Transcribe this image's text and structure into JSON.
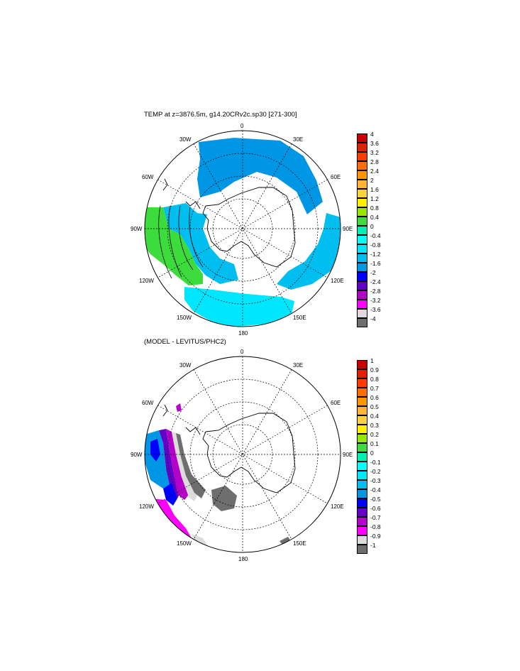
{
  "panels": [
    {
      "title": "TEMP at z=3876.5m, g14.20CRv2c.sp30 [271-300]",
      "colorbar": {
        "labels": [
          "4",
          "3.6",
          "3.2",
          "2.8",
          "2.4",
          "2",
          "1.6",
          "1.2",
          "0.8",
          "0.4",
          "0",
          "-0.4",
          "-0.8",
          "-1.2",
          "-1.6",
          "-2",
          "-2.4",
          "-2.8",
          "-3.2",
          "-3.6",
          "-4"
        ],
        "colors": [
          "#c80000",
          "#e61e00",
          "#ff3c00",
          "#ff6e00",
          "#ff9600",
          "#ffb432",
          "#ffd23c",
          "#fff000",
          "#96e600",
          "#3cdc3c",
          "#00f0b4",
          "#00ffff",
          "#00e6ff",
          "#00bef0",
          "#0096e6",
          "#0000ff",
          "#6400c8",
          "#b400c8",
          "#ff00ff",
          "#dcdcdc",
          "#6e6e6e"
        ]
      },
      "map_labels": {
        "top": "0",
        "bottom": "180",
        "left": "90W",
        "right": "90E",
        "w30": "30W",
        "w60": "60W",
        "w120": "120W",
        "w150": "150W",
        "e30": "30E",
        "e60": "60E",
        "e120": "120E",
        "e150": "150E"
      }
    },
    {
      "title": "(MODEL - LEVITUS/PHC2)",
      "colorbar": {
        "labels": [
          "1",
          "0.9",
          "0.8",
          "0.7",
          "0.6",
          "0.5",
          "0.4",
          "0.3",
          "0.2",
          "0.1",
          "0",
          "-0.1",
          "-0.2",
          "-0.3",
          "-0.4",
          "-0.5",
          "-0.6",
          "-0.7",
          "-0.8",
          "-0.9",
          "-1"
        ],
        "colors": [
          "#c80000",
          "#e61e00",
          "#ff3c00",
          "#ff6e00",
          "#ff9600",
          "#ffb432",
          "#ffd23c",
          "#fff000",
          "#96e600",
          "#3cdc3c",
          "#00f0b4",
          "#00ffff",
          "#00e6ff",
          "#00bef0",
          "#0096e6",
          "#0000ff",
          "#6400c8",
          "#b400c8",
          "#ff00ff",
          "#dcdcdc",
          "#6e6e6e"
        ]
      },
      "map_labels": {
        "top": "0",
        "bottom": "180",
        "left": "90W",
        "right": "90E",
        "w30": "30W",
        "w60": "60W",
        "w120": "120W",
        "w150": "150W",
        "e30": "30E",
        "e60": "60E",
        "e120": "120E",
        "e150": "150E"
      }
    }
  ]
}
